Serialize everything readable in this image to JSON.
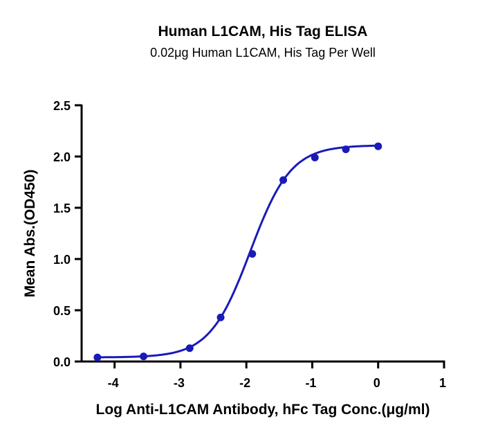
{
  "chart_data": {
    "type": "line",
    "title": "Human L1CAM, His Tag ELISA",
    "subtitle": "0.02μg Human L1CAM, His Tag Per Well",
    "xlabel": "Log Anti-L1CAM Antibody, hFc Tag Conc.(μg/ml)",
    "ylabel": "Mean Abs.(OD450)",
    "xlim": [
      -4.5,
      1
    ],
    "ylim": [
      0,
      2.5
    ],
    "xticks": [
      "-4",
      "-3",
      "-2",
      "-1",
      "0",
      "1"
    ],
    "yticks": [
      "0.0",
      "0.5",
      "1.0",
      "1.5",
      "2.0",
      "2.5"
    ],
    "grid": false,
    "color": "#1a1ab8",
    "series": [
      {
        "x": [
          -4.26,
          -3.56,
          -2.86,
          -2.39,
          -1.91,
          -1.44,
          -0.96,
          -0.49,
          0
        ],
        "y": [
          0.04,
          0.05,
          0.13,
          0.43,
          1.05,
          1.77,
          1.99,
          2.07,
          2.1
        ],
        "fit": {
          "bottom": 0.04,
          "top": 2.11,
          "logEC50": -1.94,
          "hill": 1.41
        }
      }
    ]
  }
}
